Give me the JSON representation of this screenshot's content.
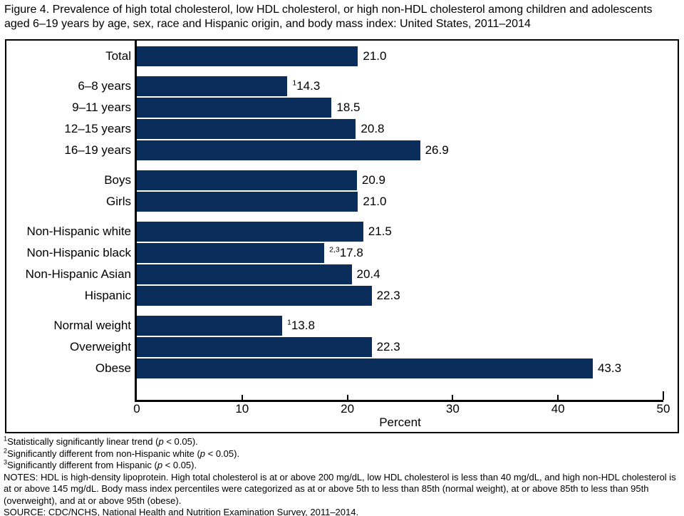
{
  "figure_title": "Figure 4. Prevalence of high total cholesterol, low HDL cholesterol, or high non-HDL cholesterol among children and adolescents aged 6–19 years by age, sex, race and Hispanic origin, and body mass index: United States, 2011–2014",
  "chart_data": {
    "type": "bar",
    "orientation": "horizontal",
    "title": "Figure 4. Prevalence of high total cholesterol, low HDL cholesterol, or high non-HDL cholesterol among children and adolescents aged 6–19 years by age, sex, race and Hispanic origin, and body mass index: United States, 2011–2014",
    "xlabel": "Percent",
    "xlim": [
      0,
      50
    ],
    "xticks": [
      0,
      10,
      20,
      30,
      40,
      50
    ],
    "bar_color": "#0b2d5b",
    "grid": false,
    "legend": false,
    "groups": [
      {
        "name": "total",
        "rows": [
          {
            "label": "Total",
            "value": 21.0,
            "display": "21.0",
            "sup": ""
          }
        ]
      },
      {
        "name": "age",
        "rows": [
          {
            "label": "6–8 years",
            "value": 14.3,
            "display": "14.3",
            "sup": "1"
          },
          {
            "label": "9–11 years",
            "value": 18.5,
            "display": "18.5",
            "sup": ""
          },
          {
            "label": "12–15 years",
            "value": 20.8,
            "display": "20.8",
            "sup": ""
          },
          {
            "label": "16–19 years",
            "value": 26.9,
            "display": "26.9",
            "sup": ""
          }
        ]
      },
      {
        "name": "sex",
        "rows": [
          {
            "label": "Boys",
            "value": 20.9,
            "display": "20.9",
            "sup": ""
          },
          {
            "label": "Girls",
            "value": 21.0,
            "display": "21.0",
            "sup": ""
          }
        ]
      },
      {
        "name": "race-hispanic-origin",
        "rows": [
          {
            "label": "Non-Hispanic white",
            "value": 21.5,
            "display": "21.5",
            "sup": ""
          },
          {
            "label": "Non-Hispanic black",
            "value": 17.8,
            "display": "17.8",
            "sup": "2,3"
          },
          {
            "label": "Non-Hispanic Asian",
            "value": 20.4,
            "display": "20.4",
            "sup": ""
          },
          {
            "label": "Hispanic",
            "value": 22.3,
            "display": "22.3",
            "sup": ""
          }
        ]
      },
      {
        "name": "body-mass-index",
        "rows": [
          {
            "label": "Normal weight",
            "value": 13.8,
            "display": "13.8",
            "sup": "1"
          },
          {
            "label": "Overweight",
            "value": 22.3,
            "display": "22.3",
            "sup": ""
          },
          {
            "label": "Obese",
            "value": 43.3,
            "display": "43.3",
            "sup": ""
          }
        ]
      }
    ]
  },
  "footnotes": [
    {
      "sup": "1",
      "text_before_p": "Statistically significantly linear trend (",
      "italic": "p",
      "text_after_p": " < 0.05)."
    },
    {
      "sup": "2",
      "text_before_p": "Significantly different from non-Hispanic white (",
      "italic": "p",
      "text_after_p": " < 0.05)."
    },
    {
      "sup": "3",
      "text_before_p": "Significantly different from Hispanic (",
      "italic": "p",
      "text_after_p": " < 0.05)."
    }
  ],
  "notes": "NOTES: HDL is high-density lipoprotein. High total cholesterol is at or above 200 mg/dL, low HDL cholesterol is less than 40 mg/dL, and high non-HDL cholesterol is at or above 145 mg/dL. Body mass index percentiles were categorized as at or above 5th to less than 85th (normal weight), at or above 85th to less than 95th (overweight), and at or above 95th (obese).",
  "source": "SOURCE: CDC/NCHS, National Health and Nutrition Examination Survey, 2011–2014."
}
